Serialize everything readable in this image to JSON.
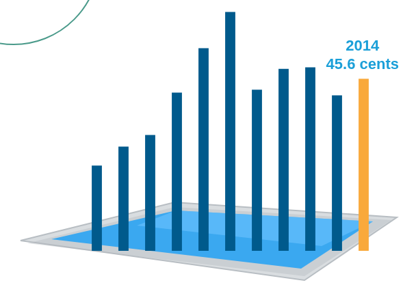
{
  "chart_data": {
    "type": "bar",
    "categories": [
      null,
      null,
      null,
      null,
      null,
      null,
      null,
      null,
      null,
      null,
      "2014"
    ],
    "values": [
      22.6,
      27.6,
      30.7,
      41.9,
      53.7,
      63.3,
      42.7,
      48.2,
      48.6,
      41.2,
      45.6
    ],
    "value_labels": [
      null,
      null,
      null,
      null,
      null,
      null,
      null,
      null,
      null,
      null,
      "45.6 cents"
    ],
    "colors": [
      "#005a8c",
      "#005a8c",
      "#005a8c",
      "#005a8c",
      "#005a8c",
      "#005a8c",
      "#005a8c",
      "#005a8c",
      "#005a8c",
      "#005a8c",
      "#f9a93b"
    ],
    "ylim": [
      0,
      65
    ],
    "grid": false,
    "tick_labels": false
  }
}
